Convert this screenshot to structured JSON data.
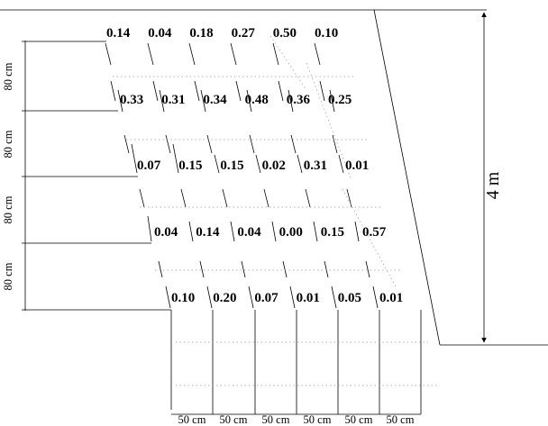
{
  "rows": [
    {
      "values": [
        "0.14",
        "0.04",
        "0.18",
        "0.27",
        "0.50",
        "0.10"
      ]
    },
    {
      "values": [
        "0.33",
        "0.31",
        "0.34",
        "0.48",
        "0.36",
        "0.25"
      ]
    },
    {
      "values": [
        "0.07",
        "0.15",
        "0.15",
        "0.02",
        "0.31",
        "0.01"
      ]
    },
    {
      "values": [
        "0.04",
        "0.14",
        "0.04",
        "0.00",
        "0.15",
        "0.57"
      ]
    },
    {
      "values": [
        "0.10",
        "0.20",
        "0.07",
        "0.01",
        "0.05",
        "0.01"
      ]
    }
  ],
  "row_spacing_labels": [
    "80 cm",
    "80 cm",
    "80 cm",
    "80 cm"
  ],
  "column_width_labels": [
    "50 cm",
    "50 cm",
    "50 cm",
    "50 cm",
    "50 cm",
    "50 cm"
  ],
  "total_height_label": "4 m"
}
